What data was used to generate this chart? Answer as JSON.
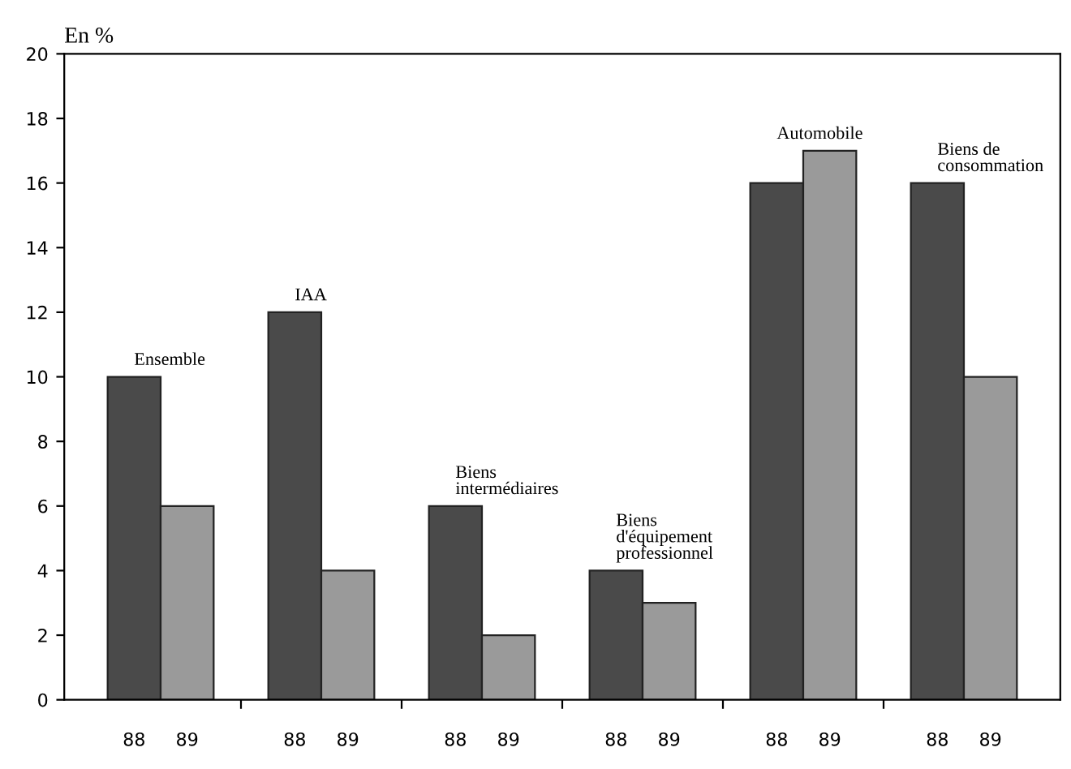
{
  "chart_data": {
    "type": "bar",
    "ylabel": "En %",
    "categories": [
      "Ensemble",
      "IAA",
      "Biens\nintermédiaires",
      "Biens\nd'équipement\nprofessionnel",
      "Automobile",
      "Biens de\nconsommation"
    ],
    "series": [
      {
        "name": "88",
        "color": "#4a4a4a",
        "values": [
          10,
          12,
          6,
          4,
          16,
          16
        ]
      },
      {
        "name": "89",
        "color": "#9a9a9a",
        "values": [
          6,
          4,
          2,
          3,
          17,
          10
        ]
      }
    ],
    "ylim": [
      0,
      20
    ],
    "yticks": [
      0,
      2,
      4,
      6,
      8,
      10,
      12,
      14,
      16,
      18,
      20
    ],
    "grid": false,
    "legend": false
  }
}
